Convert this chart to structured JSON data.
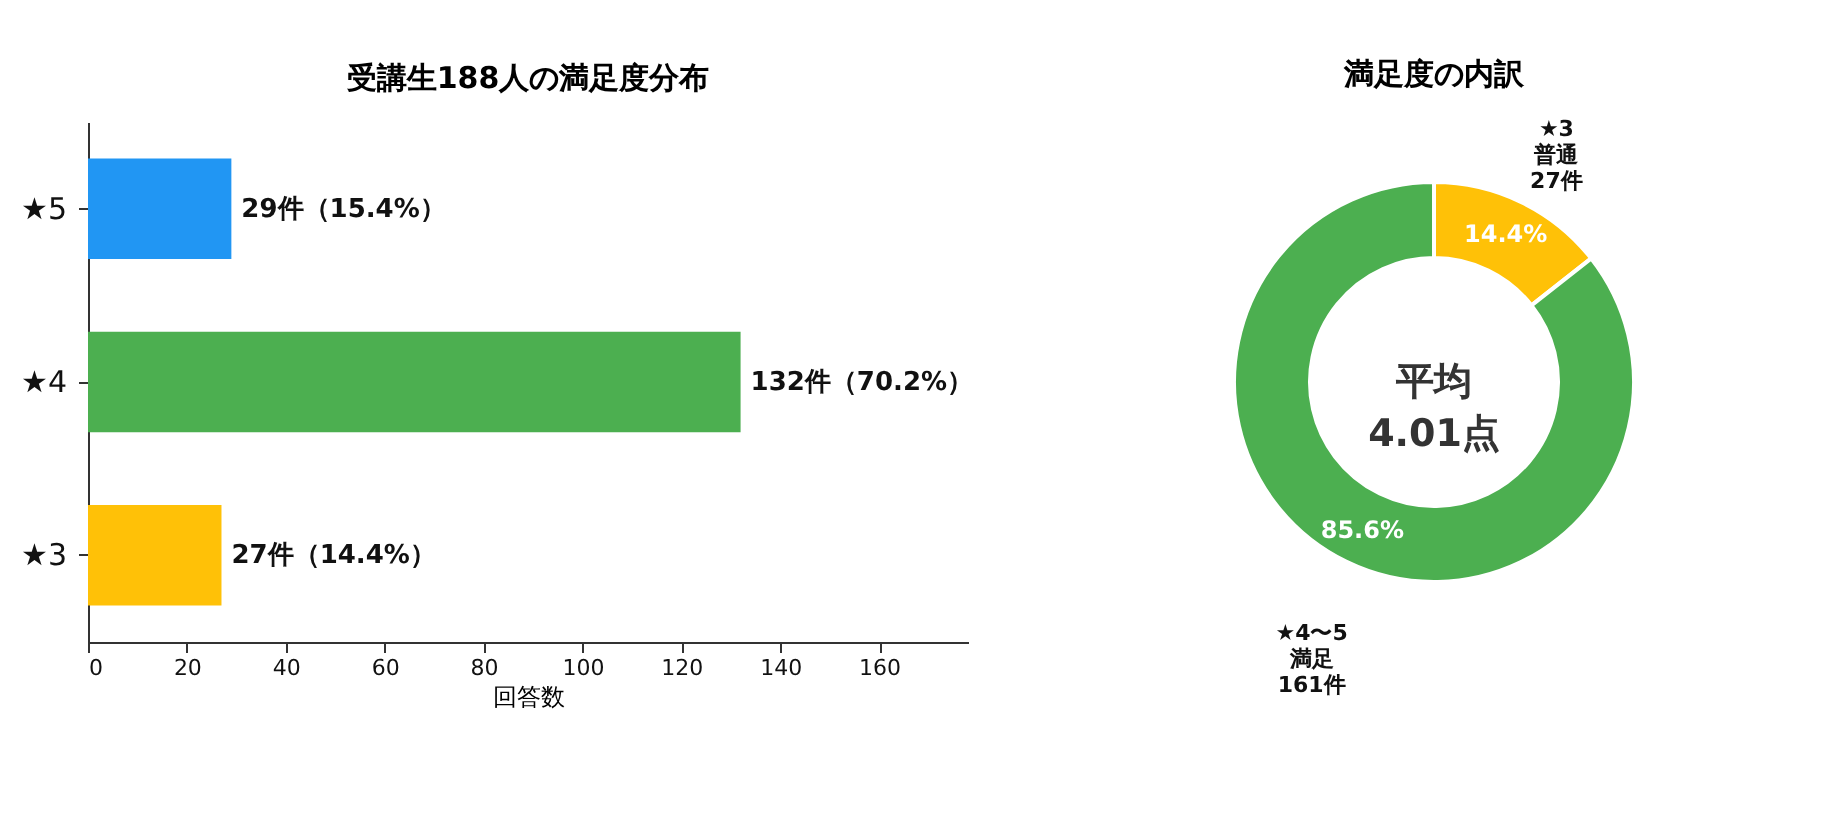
{
  "chart_data": [
    {
      "type": "bar",
      "orientation": "horizontal",
      "title": "受講生188人の満足度分布",
      "xlabel": "回答数",
      "categories": [
        "★5",
        "★4",
        "★3"
      ],
      "values": [
        29,
        132,
        27
      ],
      "colors": [
        "#2196f3",
        "#4caf50",
        "#ffc107"
      ],
      "value_labels": [
        "29件（15.4%）",
        "132件（70.2%）",
        "27件（14.4%）"
      ],
      "xlim": [
        0,
        178
      ],
      "xticks": [
        0,
        20,
        40,
        60,
        80,
        100,
        120,
        140,
        160
      ]
    },
    {
      "type": "donut",
      "title": "満足度の内訳",
      "categories": [
        "★3\n普通\n27件",
        "★4〜5\n満足\n161件"
      ],
      "values": [
        14.4,
        85.6
      ],
      "colors": [
        "#ffc107",
        "#4caf50"
      ],
      "value_labels": [
        "14.4%",
        "85.6%"
      ],
      "annotations": [
        "平均\n4.01点"
      ]
    }
  ]
}
